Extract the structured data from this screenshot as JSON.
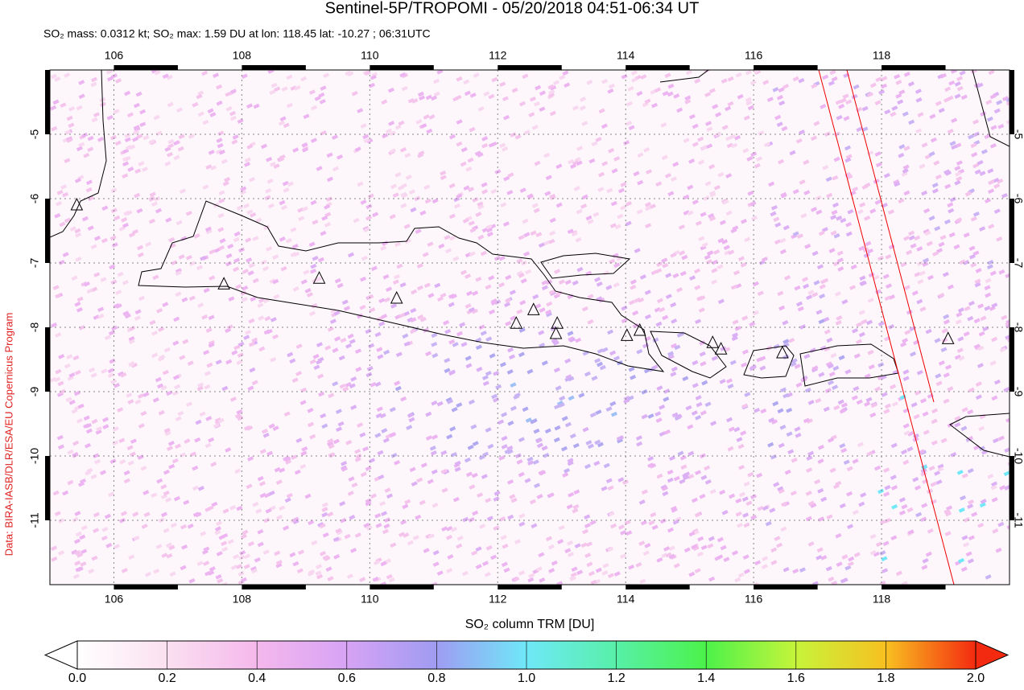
{
  "header": {
    "title": "Sentinel-5P/TROPOMI - 05/20/2018 04:51-06:34 UT",
    "subtitle": "SO₂ mass: 0.0312 kt; SO₂ max: 1.59 DU at lon: 118.45 lat: -10.27 ; 06:31UTC",
    "credit": "Data: BIRA-IASB/DLR/ESA/EU Copernicus Program"
  },
  "map": {
    "lonlim": [
      105,
      120
    ],
    "latlim": [
      -12,
      -4
    ],
    "xticks": [
      106,
      108,
      110,
      112,
      114,
      116,
      118
    ],
    "yticks": [
      -5,
      -6,
      -7,
      -8,
      -9,
      -10,
      -11
    ],
    "volcanoes": [
      [
        105.42,
        -6.1
      ],
      [
        107.72,
        -7.33
      ],
      [
        109.21,
        -7.24
      ],
      [
        110.42,
        -7.55
      ],
      [
        112.29,
        -7.94
      ],
      [
        112.56,
        -7.73
      ],
      [
        112.93,
        -7.94
      ],
      [
        112.91,
        -8.1
      ],
      [
        114.02,
        -8.13
      ],
      [
        114.22,
        -8.05
      ],
      [
        115.36,
        -8.24
      ],
      [
        115.49,
        -8.34
      ],
      [
        116.45,
        -8.4
      ],
      [
        119.04,
        -8.18
      ]
    ]
  },
  "colorbar": {
    "label": "SO₂ column TRM [DU]",
    "lim": [
      0,
      2
    ],
    "ticks": [
      {
        "value": 0,
        "label": "0.0"
      },
      {
        "value": 0.2,
        "label": "0.2"
      },
      {
        "value": 0.4,
        "label": "0.4"
      },
      {
        "value": 0.6,
        "label": "0.6"
      },
      {
        "value": 0.8,
        "label": "0.8"
      },
      {
        "value": 1,
        "label": "1.0"
      },
      {
        "value": 1.2,
        "label": "1.2"
      },
      {
        "value": 1.4,
        "label": "1.4"
      },
      {
        "value": 1.6,
        "label": "1.6"
      },
      {
        "value": 1.8,
        "label": "1.8"
      },
      {
        "value": 2,
        "label": "2.0"
      }
    ]
  }
}
